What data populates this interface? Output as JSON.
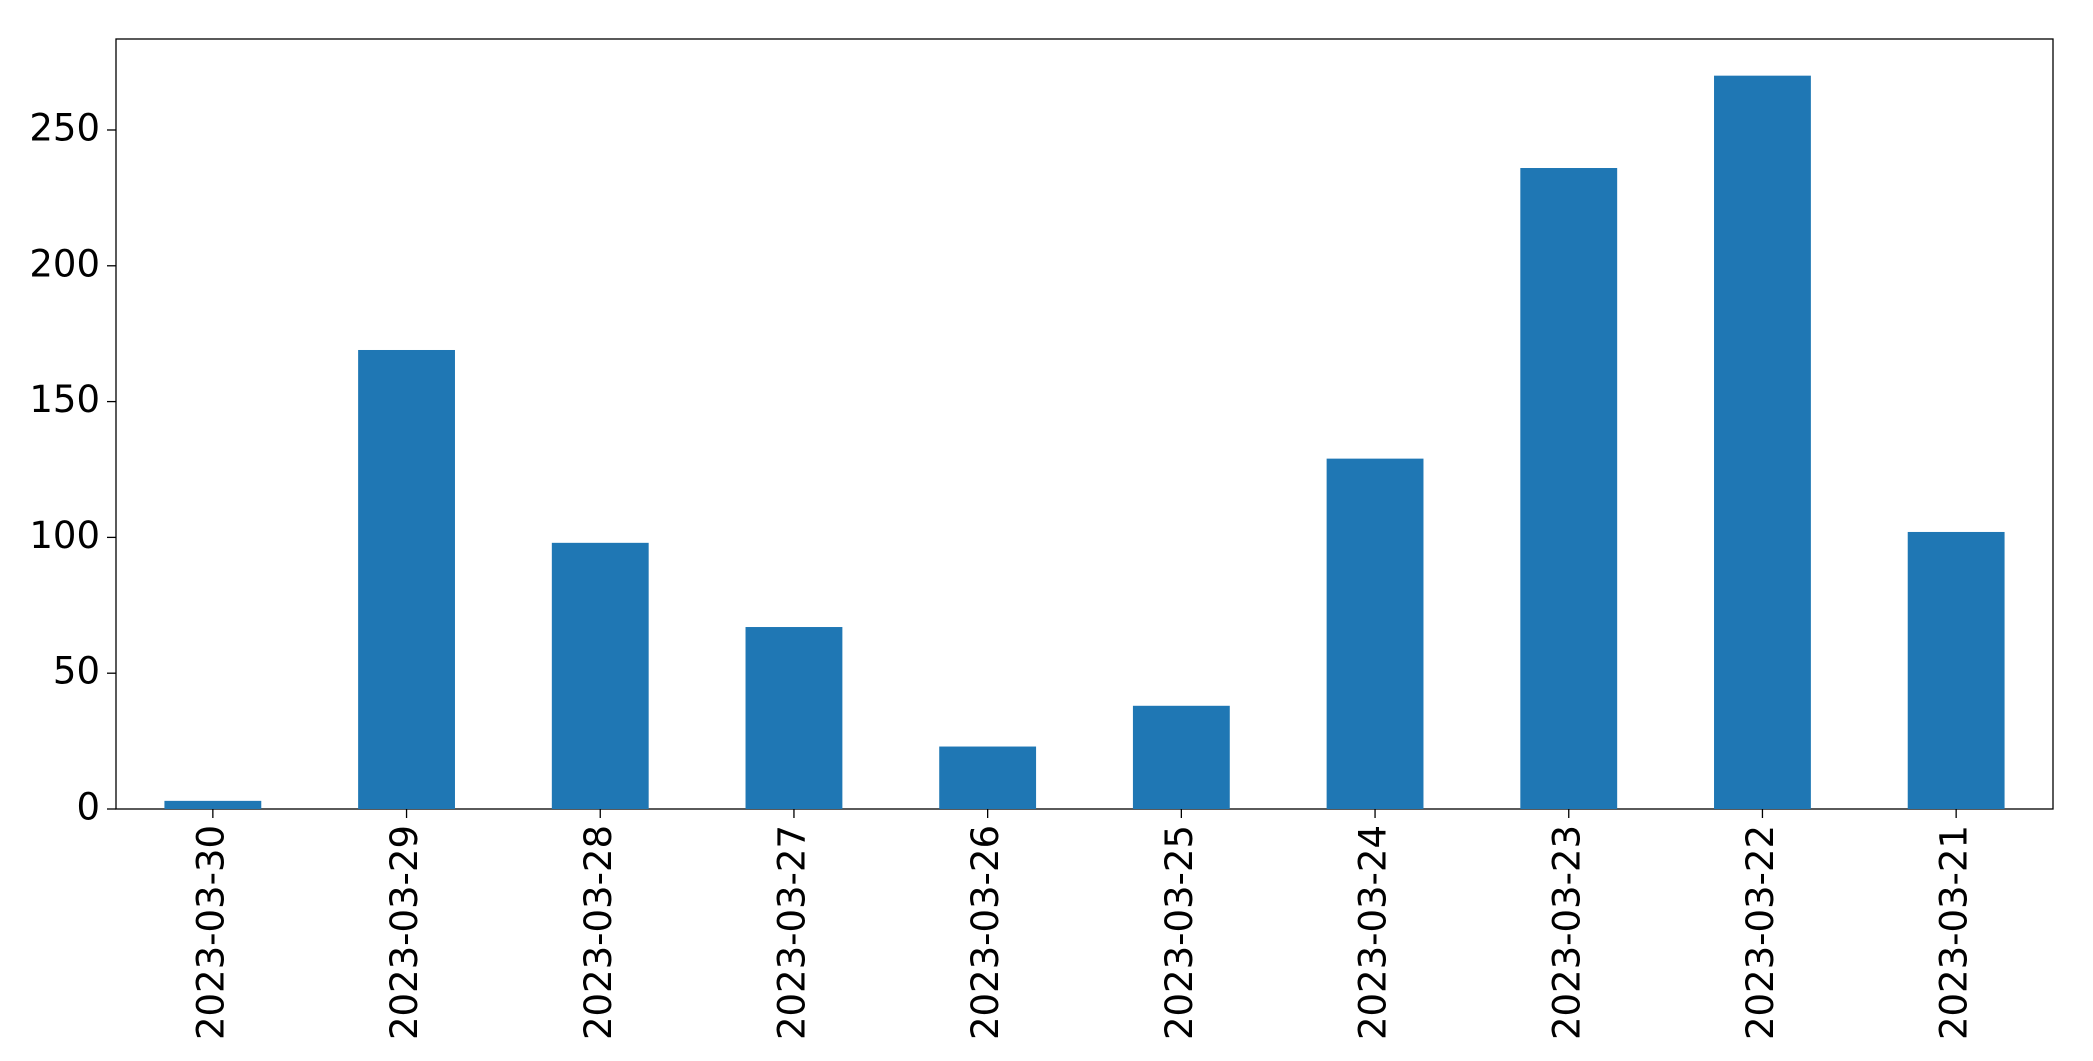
{
  "chart_data": {
    "type": "bar",
    "categories": [
      "2023-03-30",
      "2023-03-29",
      "2023-03-28",
      "2023-03-27",
      "2023-03-26",
      "2023-03-25",
      "2023-03-24",
      "2023-03-23",
      "2023-03-22",
      "2023-03-21"
    ],
    "values": [
      3,
      169,
      98,
      67,
      23,
      38,
      129,
      236,
      270,
      102
    ],
    "color": "#1f77b4",
    "ylim": [
      0,
      283.5
    ],
    "yticks": [
      0,
      50,
      100,
      150,
      200,
      250
    ],
    "grid": false
  }
}
